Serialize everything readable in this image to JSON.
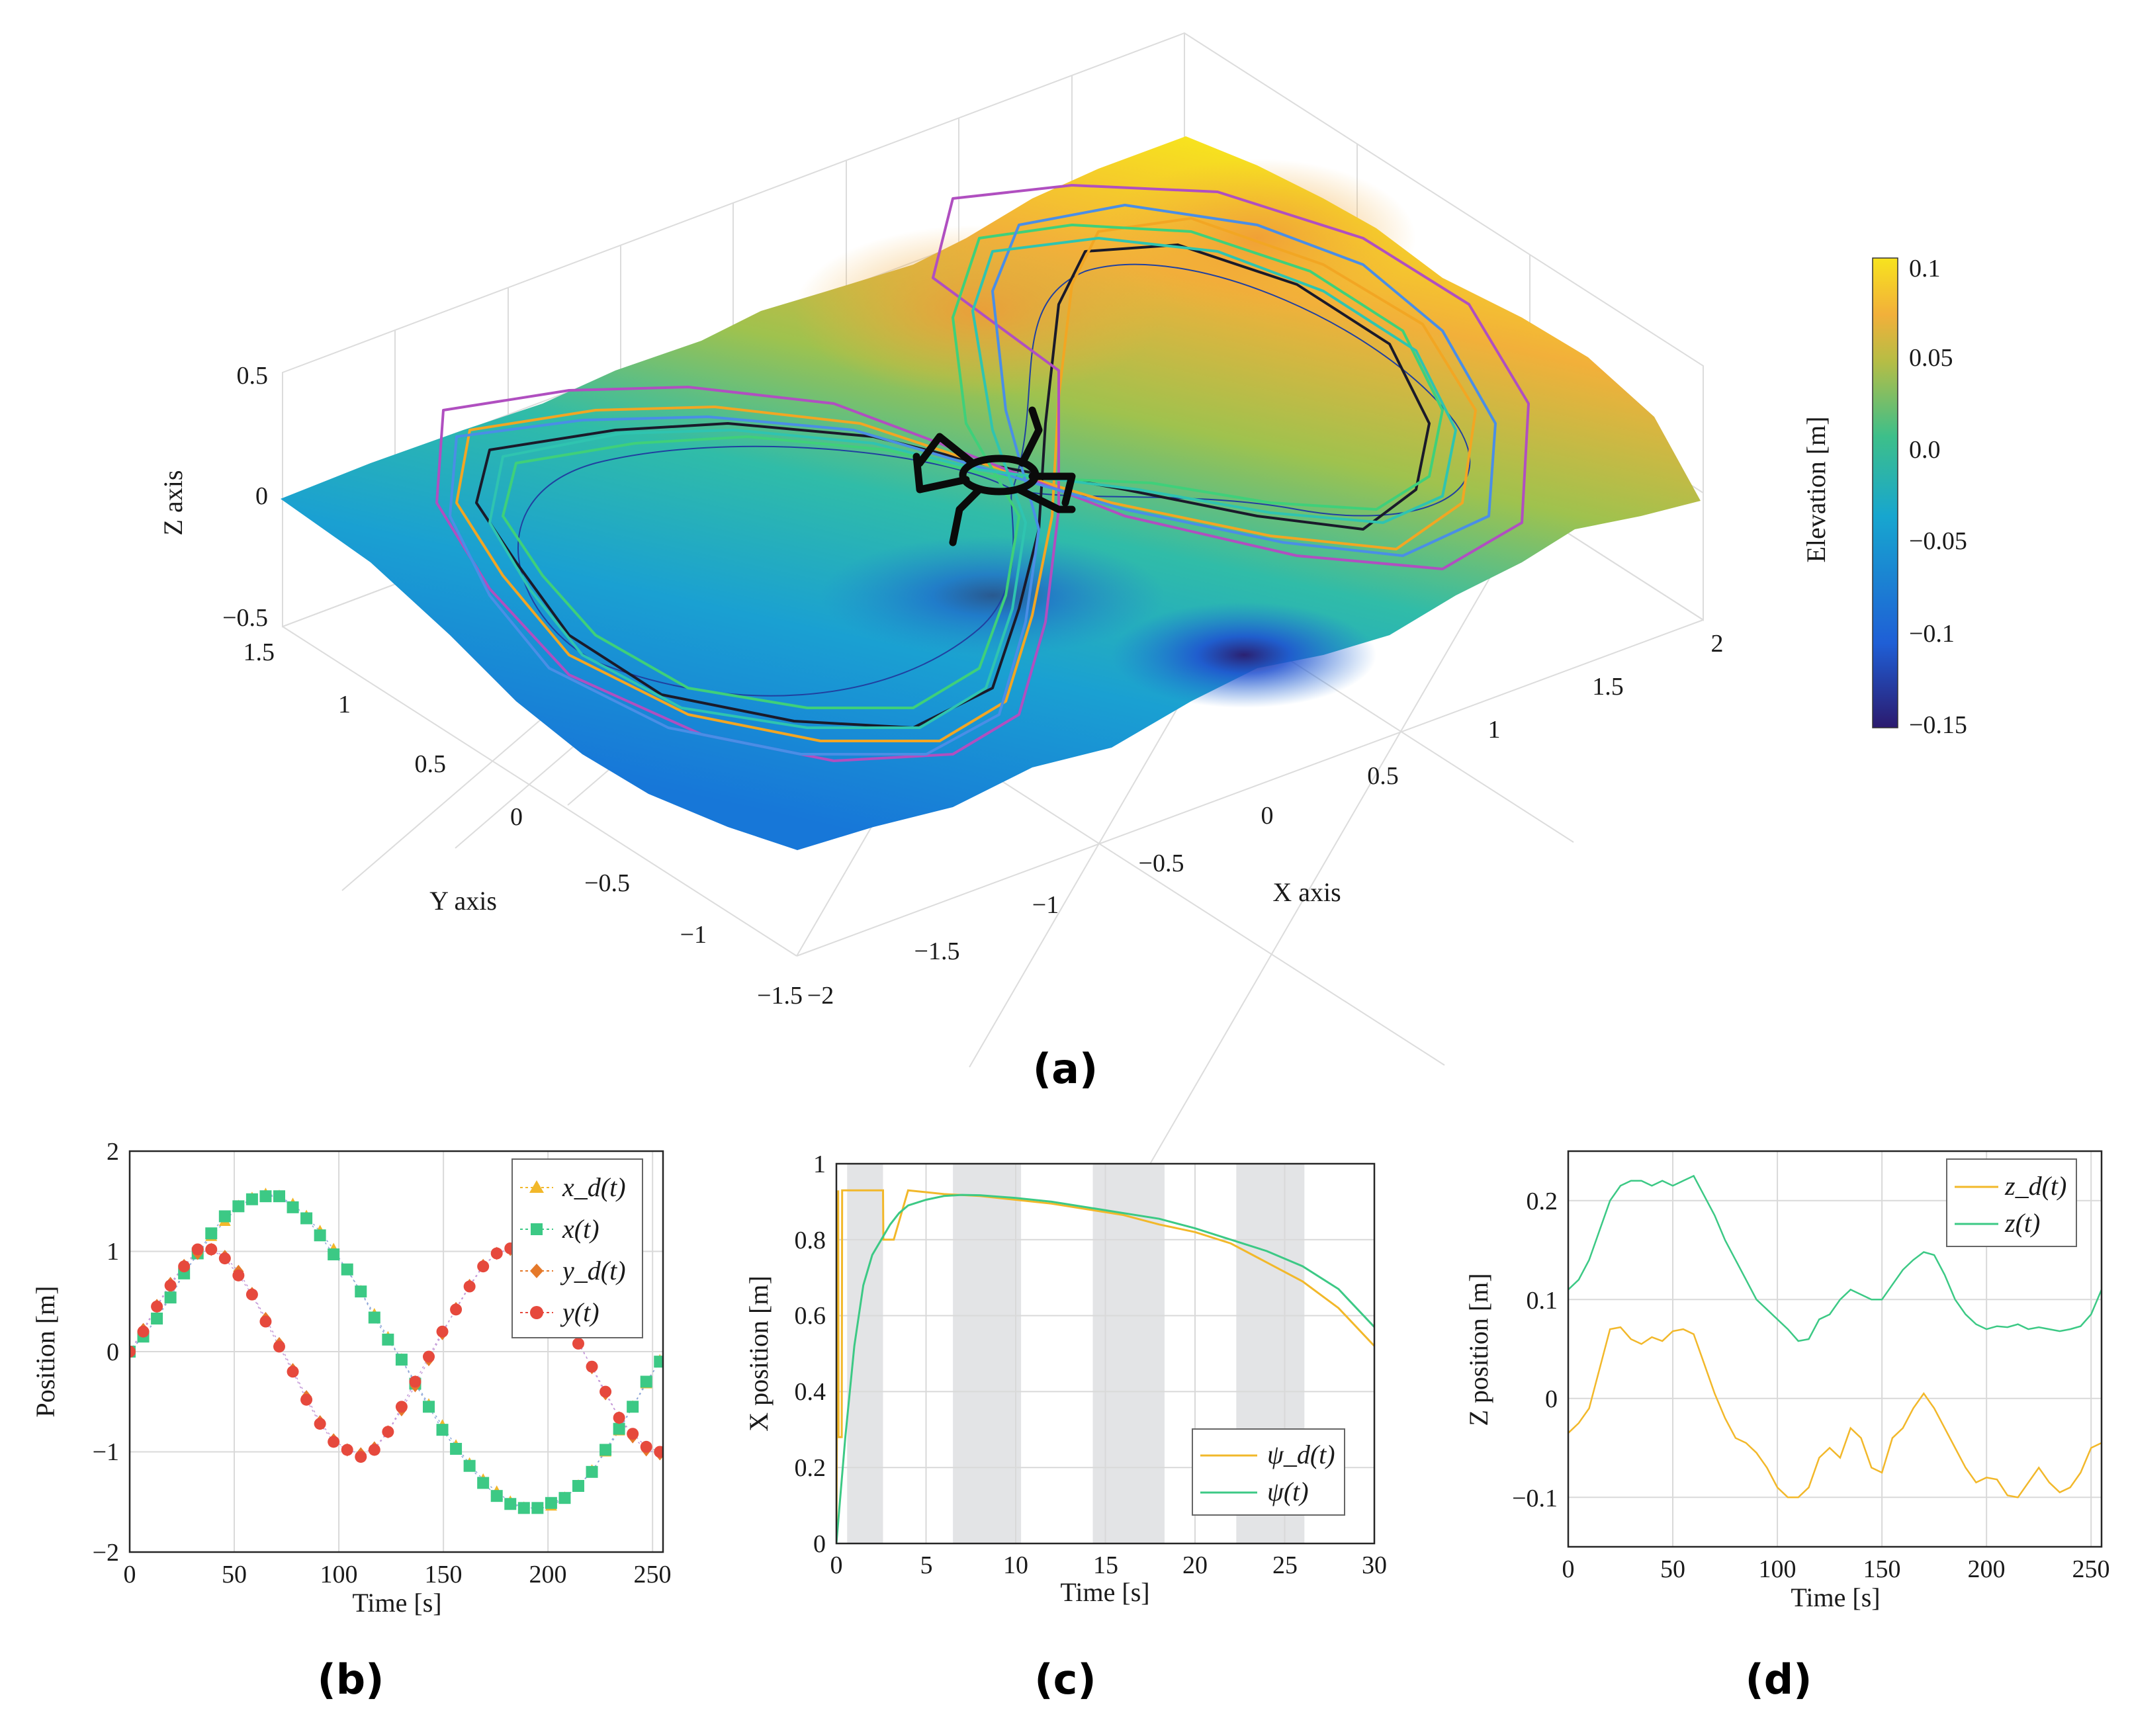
{
  "colors": {
    "terrain_high": "#f7e31e",
    "terrain_mid": "#3dbf8a",
    "terrain_low": "#1f5fd6",
    "terrain_min": "#2b1a6e",
    "series_yellow": "#f2b82a",
    "series_green": "#3cc985",
    "series_orange": "#e5792a",
    "series_red": "#e6493d",
    "shade": "#e3e4e6"
  },
  "panels": {
    "a": {
      "caption": "(a)",
      "z_label": "Z axis",
      "y_label": "Y axis",
      "x_label": "X axis",
      "colorbar_label": "Elevation [m]",
      "z_ticks": [
        "0.5",
        "0",
        "−0.5"
      ],
      "y_ticks": [
        "1.5",
        "1",
        "0.5",
        "0",
        "−0.5",
        "−1",
        "−1.5"
      ],
      "x_ticks": [
        "−2",
        "−1.5",
        "−1",
        "−0.5",
        "0",
        "0.5",
        "1",
        "1.5",
        "2"
      ],
      "colorbar_ticks": [
        "0.1",
        "0.05",
        "0.0",
        "−0.05",
        "−0.1",
        "−0.15"
      ]
    },
    "b": {
      "caption": "(b)",
      "xlabel": "Time [s]",
      "ylabel": "Position [m]",
      "x_ticks": [
        "0",
        "50",
        "100",
        "150",
        "200",
        "250"
      ],
      "y_ticks": [
        "2",
        "1",
        "0",
        "−1",
        "−2"
      ],
      "legend": [
        "x_d(t)",
        "x(t)",
        "y_d(t)",
        "y(t)"
      ]
    },
    "c": {
      "caption": "(c)",
      "xlabel": "Time [s]",
      "ylabel": "X position [m]",
      "x_ticks": [
        "0",
        "5",
        "10",
        "15",
        "20",
        "25",
        "30"
      ],
      "y_ticks": [
        "1",
        "0.8",
        "0.6",
        "0.4",
        "0.2",
        "0"
      ],
      "legend": [
        "ψ_d(t)",
        "ψ(t)"
      ]
    },
    "d": {
      "caption": "(d)",
      "xlabel": "Time [s]",
      "ylabel": "Z position [m]",
      "x_ticks": [
        "0",
        "50",
        "100",
        "150",
        "200",
        "250"
      ],
      "y_ticks": [
        "0.2",
        "0.1",
        "0",
        "−0.1"
      ],
      "legend": [
        "z_d(t)",
        "z(t)"
      ]
    }
  },
  "chart_data": [
    {
      "panel": "a",
      "type": "surface3d",
      "title": "",
      "xlabel": "X axis",
      "ylabel": "Y axis",
      "zlabel": "Z axis",
      "xlim": [
        -2,
        2
      ],
      "ylim": [
        -1.5,
        1.5
      ],
      "zlim": [
        -0.5,
        0.5
      ],
      "colorbar": {
        "label": "Elevation [m]",
        "range": [
          -0.15,
          0.1
        ]
      },
      "trajectory": "figure-eight foot paths around a central hexapod robot"
    },
    {
      "panel": "b",
      "type": "line",
      "xlabel": "Time [s]",
      "ylabel": "Position [m]",
      "xlim": [
        0,
        255
      ],
      "ylim": [
        -2,
        2
      ],
      "x": [
        0,
        6.5,
        13,
        19.5,
        26,
        32.5,
        39,
        45.5,
        52,
        58.5,
        65,
        71.5,
        78,
        84.5,
        91,
        97.5,
        104,
        110.5,
        117,
        123.5,
        130,
        136.5,
        143,
        149.5,
        156,
        162.5,
        169,
        175.5,
        182,
        188.5,
        195,
        201.5,
        208,
        214.5,
        221,
        227.5,
        234,
        240.5,
        247,
        253.5
      ],
      "series": [
        {
          "name": "x_d(t)",
          "marker": "triangle",
          "values": [
            0,
            0.16,
            0.33,
            0.57,
            0.78,
            0.97,
            1.15,
            1.3,
            1.45,
            1.53,
            1.57,
            1.55,
            1.47,
            1.35,
            1.2,
            1.02,
            0.81,
            0.6,
            0.37,
            0.14,
            -0.08,
            -0.3,
            -0.53,
            -0.74,
            -0.94,
            -1.12,
            -1.28,
            -1.4,
            -1.5,
            -1.56,
            -1.57,
            -1.54,
            -1.46,
            -1.34,
            -1.19,
            -1.0,
            -0.79,
            -0.55,
            -0.32,
            -0.09
          ]
        },
        {
          "name": "x(t)",
          "marker": "square",
          "values": [
            0,
            0.15,
            0.33,
            0.54,
            0.78,
            0.98,
            1.18,
            1.35,
            1.45,
            1.52,
            1.55,
            1.55,
            1.44,
            1.33,
            1.16,
            0.97,
            0.82,
            0.6,
            0.34,
            0.12,
            -0.08,
            -0.32,
            -0.55,
            -0.78,
            -0.97,
            -1.14,
            -1.31,
            -1.44,
            -1.52,
            -1.56,
            -1.56,
            -1.51,
            -1.46,
            -1.34,
            -1.2,
            -0.98,
            -0.77,
            -0.55,
            -0.3,
            -0.1
          ]
        },
        {
          "name": "y_d(t)",
          "marker": "diamond",
          "values": [
            0,
            0.22,
            0.46,
            0.68,
            0.86,
            0.98,
            1.02,
            0.95,
            0.8,
            0.58,
            0.33,
            0.08,
            -0.18,
            -0.45,
            -0.7,
            -0.88,
            -0.98,
            -1.02,
            -0.96,
            -0.8,
            -0.58,
            -0.34,
            -0.08,
            0.18,
            0.43,
            0.66,
            0.86,
            0.98,
            1.02,
            0.96,
            0.8,
            0.58,
            0.34,
            0.1,
            -0.16,
            -0.42,
            -0.66,
            -0.85,
            -0.98,
            -1.02
          ]
        },
        {
          "name": "y(t)",
          "marker": "circle",
          "values": [
            0,
            0.2,
            0.45,
            0.66,
            0.85,
            1.02,
            1.02,
            0.93,
            0.76,
            0.57,
            0.3,
            0.05,
            -0.2,
            -0.48,
            -0.72,
            -0.9,
            -0.98,
            -1.05,
            -0.98,
            -0.8,
            -0.55,
            -0.3,
            -0.05,
            0.2,
            0.42,
            0.65,
            0.85,
            0.98,
            1.03,
            0.93,
            0.78,
            0.57,
            0.33,
            0.08,
            -0.15,
            -0.4,
            -0.66,
            -0.82,
            -0.95,
            -1.0
          ]
        }
      ]
    },
    {
      "panel": "c",
      "type": "line",
      "xlabel": "Time [s]",
      "ylabel": "X position [m]",
      "xlim": [
        0,
        30
      ],
      "ylim": [
        0,
        1
      ],
      "shaded_intervals": [
        [
          0.6,
          2.6
        ],
        [
          6.5,
          10.3
        ],
        [
          14.3,
          18.3
        ],
        [
          22.3,
          26.1
        ]
      ],
      "series": [
        {
          "name": "ψ_d(t)",
          "x": [
            0,
            0.1,
            0.12,
            0.3,
            0.32,
            0.6,
            0.62,
            2.6,
            2.62,
            3.2,
            4,
            6,
            8,
            10,
            12,
            14,
            16,
            18,
            20,
            22,
            24,
            26,
            28,
            30
          ],
          "values": [
            0,
            0.93,
            0.28,
            0.28,
            0.93,
            0.93,
            0.93,
            0.93,
            0.8,
            0.8,
            0.93,
            0.92,
            0.915,
            0.905,
            0.895,
            0.88,
            0.865,
            0.84,
            0.82,
            0.79,
            0.74,
            0.69,
            0.62,
            0.52
          ]
        },
        {
          "name": "ψ(t)",
          "x": [
            0,
            0.5,
            1,
            1.5,
            2,
            2.5,
            3,
            3.5,
            4,
            5,
            6,
            7,
            8,
            10,
            12,
            14,
            16,
            18,
            20,
            22,
            24,
            26,
            28,
            30
          ],
          "values": [
            0,
            0.28,
            0.52,
            0.68,
            0.76,
            0.8,
            0.84,
            0.87,
            0.89,
            0.905,
            0.915,
            0.918,
            0.917,
            0.91,
            0.9,
            0.885,
            0.87,
            0.855,
            0.83,
            0.8,
            0.77,
            0.73,
            0.67,
            0.57
          ]
        }
      ]
    },
    {
      "panel": "d",
      "type": "line",
      "xlabel": "Time [s]",
      "ylabel": "Z position [m]",
      "xlim": [
        0,
        255
      ],
      "ylim": [
        -0.15,
        0.25
      ],
      "x": [
        0,
        5,
        10,
        15,
        20,
        25,
        30,
        35,
        40,
        45,
        50,
        55,
        60,
        65,
        70,
        75,
        80,
        85,
        90,
        95,
        100,
        105,
        110,
        115,
        120,
        125,
        130,
        135,
        140,
        145,
        150,
        155,
        160,
        165,
        170,
        175,
        180,
        185,
        190,
        195,
        200,
        205,
        210,
        215,
        220,
        225,
        230,
        235,
        240,
        245,
        250,
        255
      ],
      "series": [
        {
          "name": "z_d(t)",
          "values": [
            -0.035,
            -0.025,
            -0.01,
            0.03,
            0.07,
            0.072,
            0.06,
            0.055,
            0.062,
            0.058,
            0.068,
            0.07,
            0.065,
            0.035,
            0.005,
            -0.02,
            -0.04,
            -0.045,
            -0.055,
            -0.07,
            -0.09,
            -0.1,
            -0.1,
            -0.09,
            -0.06,
            -0.05,
            -0.06,
            -0.03,
            -0.04,
            -0.07,
            -0.075,
            -0.04,
            -0.03,
            -0.01,
            0.005,
            -0.01,
            -0.03,
            -0.05,
            -0.07,
            -0.085,
            -0.08,
            -0.082,
            -0.098,
            -0.1,
            -0.085,
            -0.07,
            -0.085,
            -0.095,
            -0.09,
            -0.075,
            -0.05,
            -0.045
          ]
        },
        {
          "name": "z(t)",
          "values": [
            0.11,
            0.12,
            0.14,
            0.17,
            0.2,
            0.215,
            0.22,
            0.22,
            0.215,
            0.22,
            0.215,
            0.22,
            0.225,
            0.205,
            0.185,
            0.16,
            0.14,
            0.12,
            0.1,
            0.09,
            0.08,
            0.07,
            0.058,
            0.06,
            0.08,
            0.085,
            0.1,
            0.11,
            0.105,
            0.1,
            0.1,
            0.115,
            0.13,
            0.14,
            0.148,
            0.145,
            0.125,
            0.1,
            0.085,
            0.075,
            0.07,
            0.073,
            0.072,
            0.075,
            0.07,
            0.072,
            0.07,
            0.068,
            0.07,
            0.073,
            0.085,
            0.11
          ]
        }
      ]
    }
  ]
}
